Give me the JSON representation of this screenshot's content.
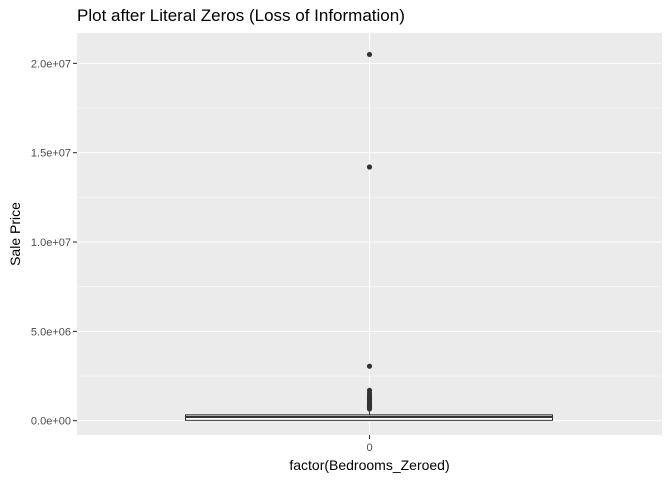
{
  "chart_data": {
    "type": "box",
    "title": "Plot after Literal Zeros (Loss of Information)",
    "xlabel": "factor(Bedrooms_Zeroed)",
    "ylabel": "Sale Price",
    "categories": [
      "0"
    ],
    "ylim": [
      -800000,
      21700000
    ],
    "yticks": [
      0,
      5000000,
      10000000,
      15000000,
      20000000
    ],
    "ytick_labels": [
      "0.0e+00",
      "5.0e+06",
      "1.0e+07",
      "1.5e+07",
      "2.0e+07"
    ],
    "grid": true,
    "boxes": [
      {
        "category": "0",
        "min": 0,
        "q1": 20000,
        "median": 210000,
        "q3": 330000,
        "whisker_low": 0,
        "whisker_high": 600000,
        "outliers": [
          20500000,
          14200000,
          3050000,
          1700000,
          1550000,
          1420000,
          1300000,
          1200000,
          1100000,
          1000000,
          920000,
          850000,
          780000,
          720000,
          660000
        ]
      }
    ],
    "colors": {
      "panel": "#ebebeb",
      "grid_major": "#ffffff",
      "box_line": "#333333",
      "box_fill": "#ffffff",
      "point": "#333333"
    }
  }
}
